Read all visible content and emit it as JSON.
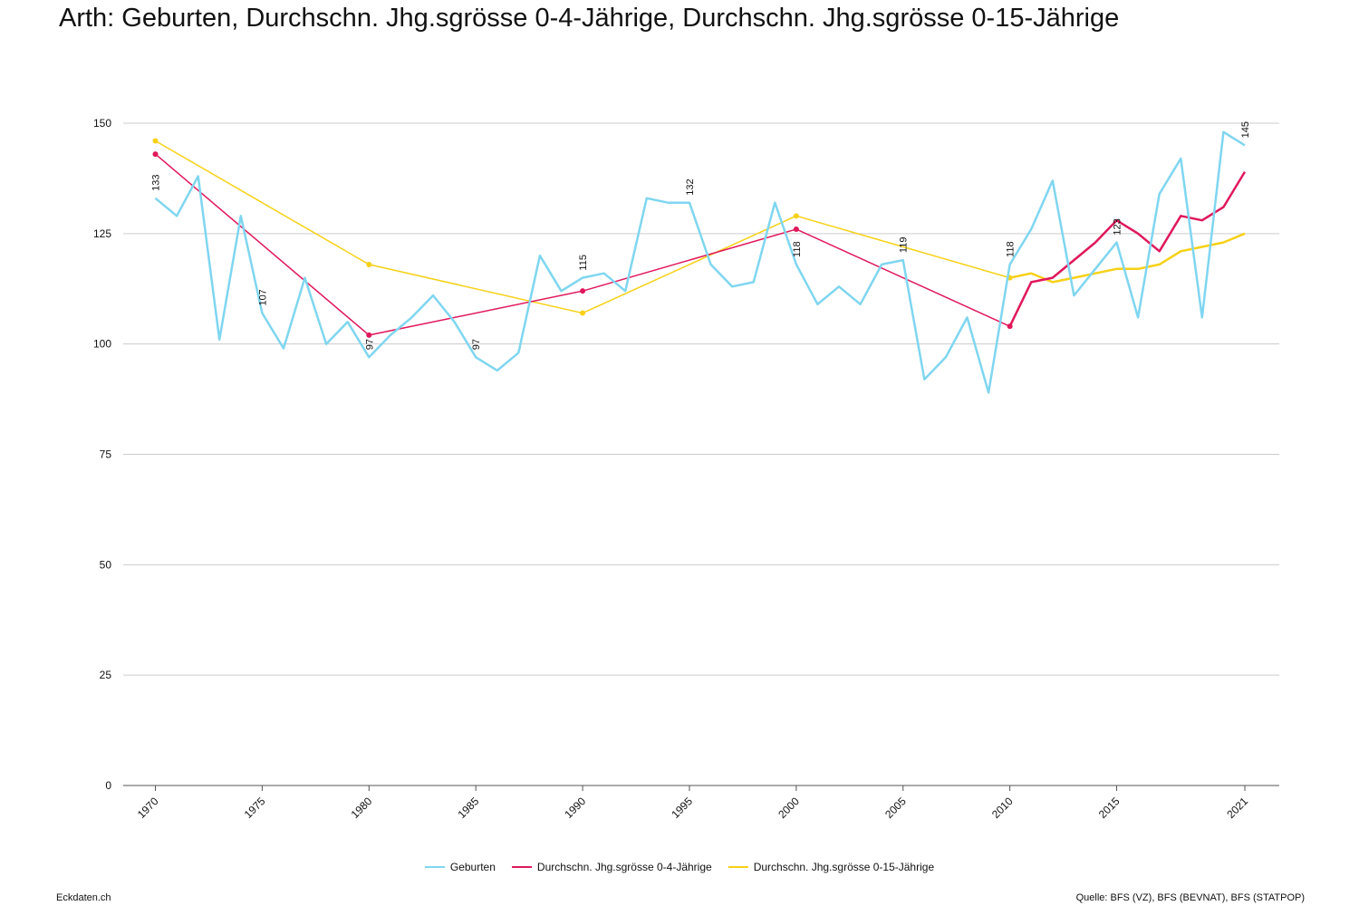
{
  "title": "Arth: Geburten, Durchschn. Jhg.sgrösse 0-4-Jährige, Durchschn. Jhg.sgrösse 0-15-Jährige",
  "footer": {
    "left": "Eckdaten.ch",
    "right": "Quelle: BFS (VZ), BFS (BEVNAT), BFS (STATPOP)"
  },
  "colors": {
    "geburten": "#7fd6f0",
    "avg04": "#e0185a",
    "avg015": "#f7d117",
    "grid": "#cccccc",
    "axis": "#555555"
  },
  "chart_data": {
    "type": "line",
    "xlim": [
      1970,
      2021
    ],
    "ylim": [
      0,
      150
    ],
    "yticks": [
      0,
      25,
      50,
      75,
      100,
      125,
      150
    ],
    "xticks": [
      "1970",
      "1975",
      "1980",
      "1985",
      "1990",
      "1995",
      "2000",
      "2005",
      "2010",
      "2015",
      "2021"
    ],
    "grid": true,
    "legend_position": "bottom",
    "series": [
      {
        "name": "Geburten",
        "key": "geburten",
        "x": [
          1970,
          1971,
          1972,
          1973,
          1974,
          1975,
          1976,
          1977,
          1978,
          1979,
          1980,
          1981,
          1982,
          1983,
          1984,
          1985,
          1986,
          1987,
          1988,
          1989,
          1990,
          1991,
          1992,
          1993,
          1994,
          1995,
          1996,
          1997,
          1998,
          1999,
          2000,
          2001,
          2002,
          2003,
          2004,
          2005,
          2006,
          2007,
          2008,
          2009,
          2010,
          2011,
          2012,
          2013,
          2014,
          2015,
          2016,
          2017,
          2018,
          2019,
          2020,
          2021
        ],
        "y": [
          133,
          129,
          138,
          101,
          129,
          107,
          99,
          115,
          100,
          105,
          97,
          102,
          106,
          111,
          105,
          97,
          94,
          98,
          120,
          112,
          115,
          116,
          112,
          133,
          132,
          132,
          118,
          113,
          114,
          132,
          118,
          109,
          113,
          109,
          118,
          119,
          92,
          97,
          106,
          89,
          118,
          126,
          137,
          111,
          117,
          123,
          106,
          134,
          142,
          106,
          148,
          145
        ],
        "labels": [
          {
            "x": 1970,
            "y": 133,
            "text": "133"
          },
          {
            "x": 1975,
            "y": 107,
            "text": "107"
          },
          {
            "x": 1980,
            "y": 97,
            "text": "97"
          },
          {
            "x": 1985,
            "y": 97,
            "text": "97"
          },
          {
            "x": 1990,
            "y": 115,
            "text": "115"
          },
          {
            "x": 1995,
            "y": 132,
            "text": "132"
          },
          {
            "x": 2000,
            "y": 118,
            "text": "118"
          },
          {
            "x": 2005,
            "y": 119,
            "text": "119"
          },
          {
            "x": 2010,
            "y": 118,
            "text": "118"
          },
          {
            "x": 2015,
            "y": 123,
            "text": "123"
          },
          {
            "x": 2021,
            "y": 145,
            "text": "145"
          }
        ]
      },
      {
        "name": "Durchschn. Jhg.sgrösse 0-4-Jährige",
        "key": "avg04",
        "x": [
          1970,
          1980,
          1990,
          2000,
          2010,
          2011,
          2012,
          2013,
          2014,
          2015,
          2016,
          2017,
          2018,
          2019,
          2020,
          2021
        ],
        "y": [
          143,
          102,
          112,
          126,
          104,
          114,
          115,
          119,
          123,
          128,
          125,
          121,
          129,
          128,
          131,
          139
        ],
        "markers": [
          1970,
          1980,
          1990,
          2000,
          2010
        ]
      },
      {
        "name": "Durchschn. Jhg.sgrösse 0-15-Jährige",
        "key": "avg015",
        "x": [
          1970,
          1980,
          1990,
          2000,
          2010,
          2011,
          2012,
          2013,
          2014,
          2015,
          2016,
          2017,
          2018,
          2019,
          2020,
          2021
        ],
        "y": [
          146,
          118,
          107,
          129,
          115,
          116,
          114,
          115,
          116,
          117,
          117,
          118,
          121,
          122,
          123,
          125
        ],
        "markers": [
          1970,
          1980,
          1990,
          2000,
          2010
        ]
      }
    ]
  }
}
